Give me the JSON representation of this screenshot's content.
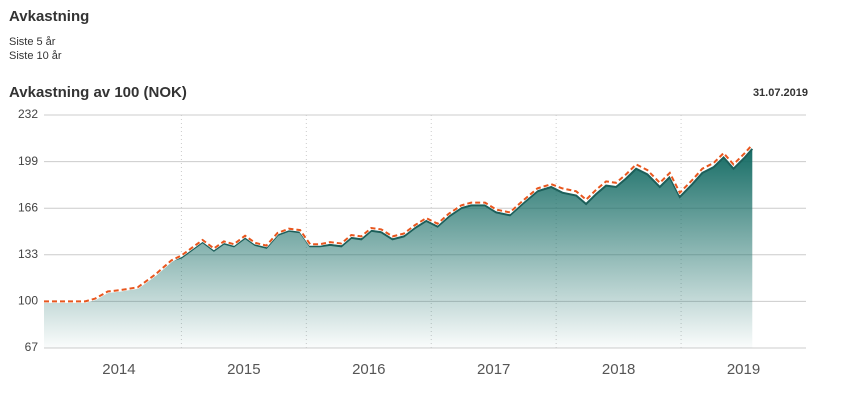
{
  "header": {
    "title": "Avkastning",
    "links": [
      "Siste 5 år",
      "Siste 10 år"
    ]
  },
  "chart_data": {
    "type": "area",
    "title": "Avkastning av 100 (NOK)",
    "date": "31.07.2019",
    "x": [
      2013.9,
      2014.23,
      2014.31,
      2014.41,
      2014.51,
      2014.65,
      2014.79,
      2014.92,
      2015.0,
      2015.17,
      2015.26,
      2015.34,
      2015.42,
      2015.51,
      2015.59,
      2015.68,
      2015.77,
      2015.86,
      2015.95,
      2016.03,
      2016.11,
      2016.19,
      2016.28,
      2016.36,
      2016.44,
      2016.52,
      2016.6,
      2016.69,
      2016.78,
      2016.87,
      2016.96,
      2017.05,
      2017.14,
      2017.24,
      2017.32,
      2017.43,
      2017.52,
      2017.63,
      2017.73,
      2017.85,
      2017.96,
      2018.05,
      2018.16,
      2018.24,
      2018.32,
      2018.4,
      2018.48,
      2018.56,
      2018.64,
      2018.73,
      2018.83,
      2018.91,
      2018.99,
      2019.09,
      2019.17,
      2019.26,
      2019.34,
      2019.42,
      2019.51,
      2019.57
    ],
    "series": [
      {
        "color": "#1d5f5a",
        "fill": "gradient",
        "values": [
          100,
          100,
          102,
          107,
          108,
          110,
          119,
          129,
          131,
          142,
          136,
          141,
          139,
          145,
          140,
          138,
          147,
          150,
          149,
          139,
          139,
          140,
          139,
          145,
          144,
          150,
          149,
          144,
          146,
          152,
          157,
          153,
          160,
          166,
          168,
          168,
          163,
          161,
          169,
          178,
          181,
          177,
          175,
          169,
          176,
          182,
          181,
          187,
          194,
          190,
          181,
          188,
          174,
          183,
          191,
          195,
          202,
          194,
          202,
          208
        ]
      },
      {
        "color": "#e8561e",
        "dashed": true,
        "values": [
          100,
          100,
          102,
          107,
          108,
          110,
          119,
          129,
          132.5,
          143.5,
          137.5,
          142.5,
          140.5,
          146.5,
          141.5,
          139.5,
          148.5,
          151.5,
          150.5,
          140.5,
          140.5,
          142,
          141,
          147,
          146,
          152,
          151,
          146,
          148,
          154,
          159,
          155,
          162,
          168,
          170,
          170,
          165,
          163,
          171,
          180,
          183,
          180,
          178,
          172,
          179,
          185,
          184,
          190,
          197,
          193,
          184,
          191,
          177,
          186,
          194,
          198,
          205,
          197,
          205,
          211
        ]
      }
    ],
    "xlim": [
      2013.9,
      2020.0
    ],
    "ylim": [
      67,
      232
    ],
    "yticks": [
      67,
      100,
      133,
      166,
      199,
      232
    ],
    "xticks": [
      {
        "value": 2014.5,
        "label": "2014"
      },
      {
        "value": 2015.5,
        "label": "2015"
      },
      {
        "value": 2016.5,
        "label": "2016"
      },
      {
        "value": 2017.5,
        "label": "2017"
      },
      {
        "value": 2018.5,
        "label": "2018"
      },
      {
        "value": 2019.5,
        "label": "2019"
      }
    ],
    "xgrid": [
      2015,
      2016,
      2017,
      2018,
      2019
    ],
    "grid": true
  }
}
